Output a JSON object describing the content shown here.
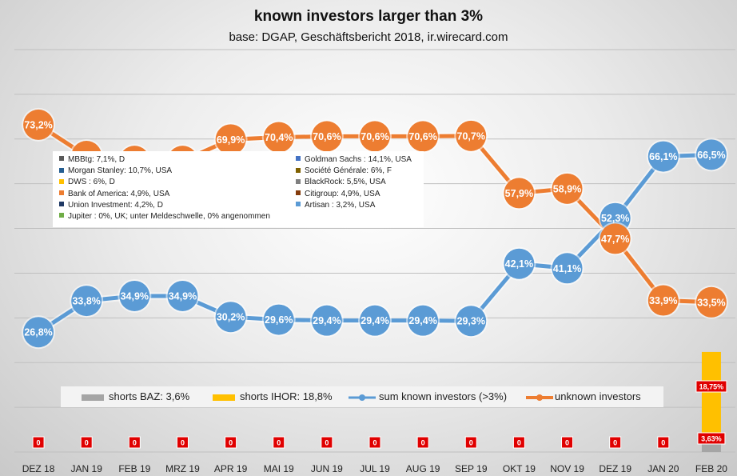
{
  "chart_data": {
    "type": "line",
    "title": "known investors larger than 3%",
    "subtitle": "base: DGAP, Geschäftsbericht 2018, ir.wirecard.com",
    "categories": [
      "DEZ 18",
      "JAN 19",
      "FEB 19",
      "MRZ 19",
      "APR 19",
      "MAI 19",
      "JUN 19",
      "JUL 19",
      "AUG 19",
      "SEP 19",
      "OKT 19",
      "NOV 19",
      "DEZ 19",
      "JAN 20",
      "FEB 20"
    ],
    "ylim": [
      0,
      90
    ],
    "grid": true,
    "series": [
      {
        "name": "sum known investors (>3%)",
        "type": "line",
        "color": "#5b9bd5",
        "values": [
          26.8,
          33.8,
          34.9,
          34.9,
          30.2,
          29.6,
          29.4,
          29.4,
          29.4,
          29.3,
          42.1,
          41.1,
          52.3,
          66.1,
          66.5
        ],
        "labels": [
          "26,8%",
          "33,8%",
          "34,9%",
          "34,9%",
          "30,2%",
          "29,6%",
          "29,4%",
          "29,4%",
          "29,4%",
          "29,3%",
          "42,1%",
          "41,1%",
          "52,3%",
          "66,1%",
          "66,5%"
        ]
      },
      {
        "name": "unknown investors",
        "type": "line",
        "color": "#ed7d31",
        "values": [
          73.2,
          66.2,
          65.1,
          65.1,
          69.9,
          70.4,
          70.6,
          70.6,
          70.6,
          70.7,
          57.9,
          58.9,
          47.7,
          33.9,
          33.5
        ],
        "labels": [
          "73,2%",
          "66,2%",
          "65,1%",
          "65,1%",
          "69,9%",
          "70,4%",
          "70,6%",
          "70,6%",
          "70,6%",
          "70,7%",
          "57,9%",
          "58,9%",
          "47,7%",
          "33,9%",
          "33,5%"
        ]
      },
      {
        "name": "shorts BAZ: 3,6%",
        "type": "bar",
        "color": "#a5a5a5",
        "values": [
          0,
          0,
          0,
          0,
          0,
          0,
          0,
          0,
          0,
          0,
          0,
          0,
          0,
          0,
          3.63
        ],
        "labels": [
          "0",
          "0",
          "0",
          "0",
          "0",
          "0",
          "0",
          "0",
          "0",
          "0",
          "0",
          "0",
          "0",
          "0",
          "3,63%"
        ]
      },
      {
        "name": "shorts IHOR: 18,8%",
        "type": "bar",
        "color": "#ffc000",
        "values": [
          0,
          0,
          0,
          0,
          0,
          0,
          0,
          0,
          0,
          0,
          0,
          0,
          0,
          0,
          18.75
        ],
        "labels": [
          "",
          "",
          "",
          "",
          "",
          "",
          "",
          "",
          "",
          "",
          "",
          "",
          "",
          "",
          "18,75%"
        ]
      }
    ]
  },
  "investor_legend": [
    {
      "label": "MBBtg: 7,1%, D",
      "color": "#595959"
    },
    {
      "label": "Goldman Sachs : 14,1%, USA",
      "color": "#4472c4"
    },
    {
      "label": "Morgan Stanley: 10,7%, USA",
      "color": "#255e91"
    },
    {
      "label": "Société Générale: 6%, F",
      "color": "#7f6000"
    },
    {
      "label": "DWS : 6%, D",
      "color": "#ffc000"
    },
    {
      "label": "BlackRock: 5,5%, USA",
      "color": "#7f7f7f"
    },
    {
      "label": "Bank of America: 4,9%, USA",
      "color": "#ed7d31"
    },
    {
      "label": "Citigroup: 4,9%, USA",
      "color": "#843c0c"
    },
    {
      "label": "Union Investment: 4,2%, D",
      "color": "#1f3864"
    },
    {
      "label": "Artisan : 3,2%, USA",
      "color": "#5b9bd5"
    },
    {
      "label": "Jupiter : 0%, UK; unter Meldeschwelle, 0% angenommen",
      "color": "#70ad47"
    }
  ]
}
